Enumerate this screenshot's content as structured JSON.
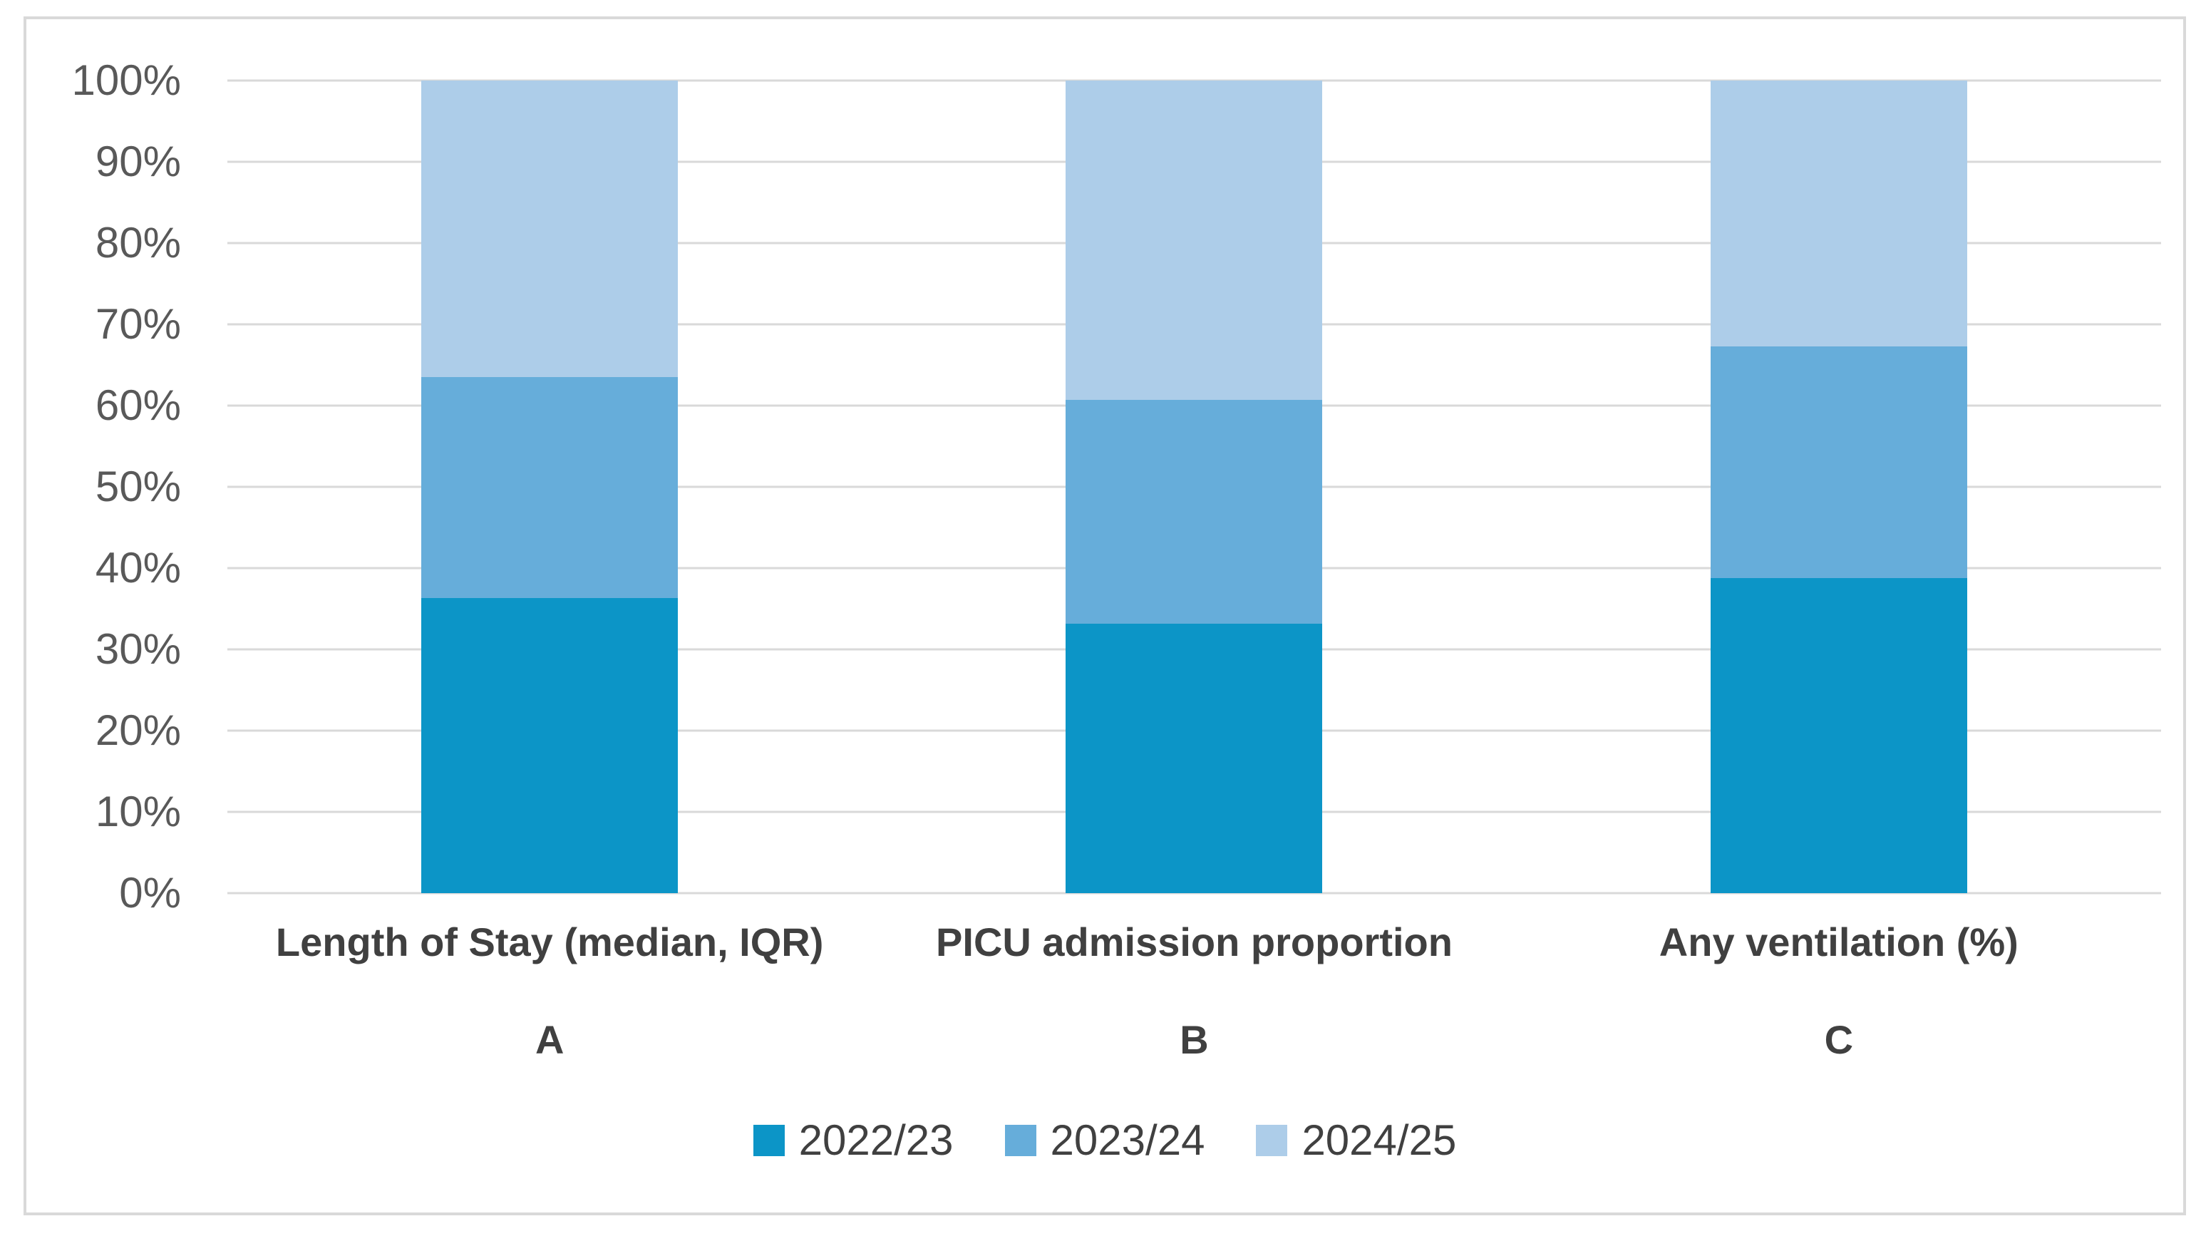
{
  "chart_data": {
    "type": "bar",
    "subtype": "stacked-100-percent-column",
    "title": "",
    "xlabel": "",
    "ylabel": "",
    "categories": [
      "Length of Stay (median, IQR)",
      "PICU admission proportion",
      "Any ventilation (%)"
    ],
    "category_sublabels": [
      "A",
      "B",
      "C"
    ],
    "series": [
      {
        "name": "2022/23",
        "color": "#0C95C7",
        "values": [
          36.3,
          33.2,
          38.8
        ]
      },
      {
        "name": "2023/24",
        "color": "#66ADDA",
        "values": [
          27.2,
          27.5,
          28.5
        ]
      },
      {
        "name": "2024/25",
        "color": "#ADCDE9",
        "values": [
          36.5,
          39.3,
          32.7
        ]
      }
    ],
    "ylim": [
      0,
      100
    ],
    "y_ticks": [
      "0%",
      "10%",
      "20%",
      "30%",
      "40%",
      "50%",
      "60%",
      "70%",
      "80%",
      "90%",
      "100%"
    ],
    "grid": true,
    "legend_position": "bottom",
    "colors": {
      "gridline": "#D9D9D9",
      "frame_border": "#D9D9D9",
      "tick_text": "#595959",
      "label_text": "#404040",
      "background": "#FFFFFF"
    }
  }
}
